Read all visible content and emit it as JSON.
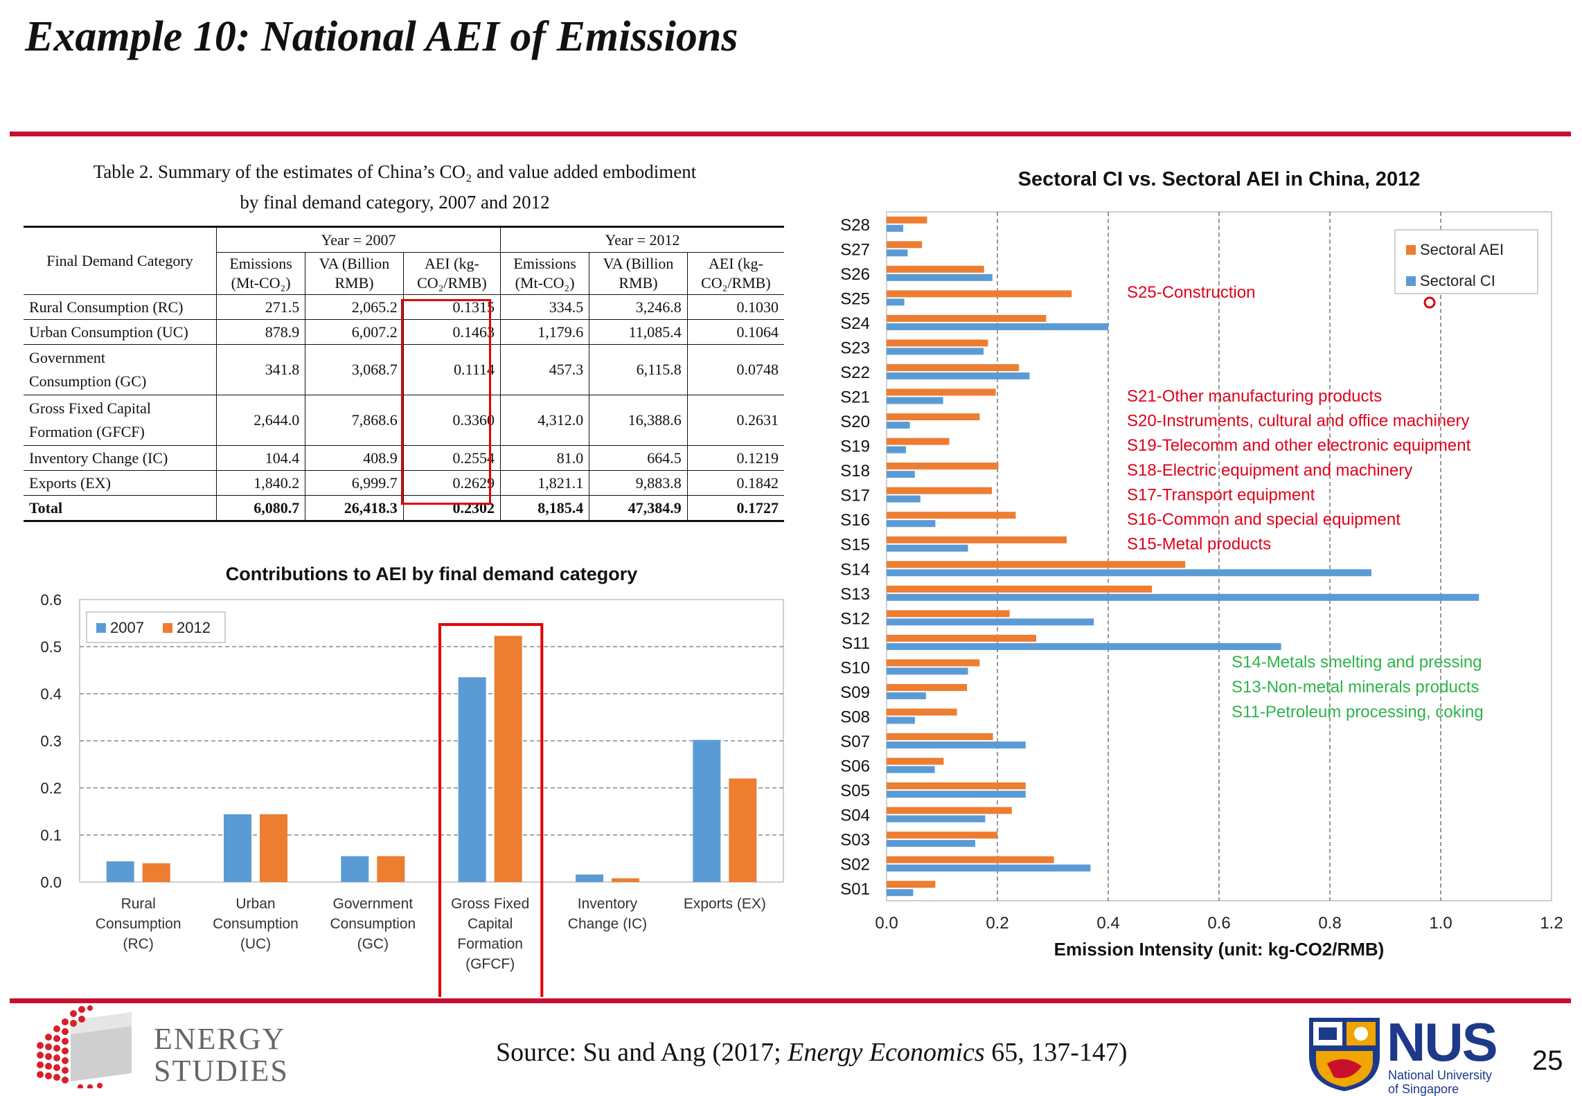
{
  "slide": {
    "title": "Example 10: National AEI of Emissions",
    "page_number": "25",
    "source_prefix": "Source: Su and Ang (2017; ",
    "source_journal": "Energy Economics",
    "source_suffix": " 65, 137-147)",
    "colors": {
      "rule": "#c8102e",
      "highlight_box": "#e00000",
      "series_blue": "#5b9bd5",
      "series_orange": "#ed7d31",
      "annot_red": "#e0001b",
      "annot_green": "#2db34a"
    }
  },
  "logos": {
    "energy_line1": "ENERGY",
    "energy_line2": "STUDIES",
    "nus_word": "NUS",
    "nus_sub1": "National University",
    "nus_sub2": "of Singapore"
  },
  "table": {
    "caption_line1": "Table 2. Summary of the estimates of China’s CO₂ and value added embodiment",
    "caption_line2": "by final demand category, 2007 and 2012",
    "col_category": "Final Demand Category",
    "year_2007": "Year = 2007",
    "year_2012": "Year = 2012",
    "h_emis_1": "Emissions",
    "h_emis_2": "(Mt-CO₂)",
    "h_va_1": "VA (Billion",
    "h_va_2": "RMB)",
    "h_aei_1": "AEI (kg-",
    "h_aei_2": "CO₂/RMB)",
    "rows": [
      {
        "name": "Rural Consumption (RC)",
        "e07": "271.5",
        "va07": "2,065.2",
        "aei07": "0.1315",
        "e12": "334.5",
        "va12": "3,246.8",
        "aei12": "0.1030"
      },
      {
        "name": "Urban Consumption (UC)",
        "e07": "878.9",
        "va07": "6,007.2",
        "aei07": "0.1463",
        "e12": "1,179.6",
        "va12": "11,085.4",
        "aei12": "0.1064"
      },
      {
        "name_1": "Government",
        "name_2": "Consumption (GC)",
        "e07": "341.8",
        "va07": "3,068.7",
        "aei07": "0.1114",
        "e12": "457.3",
        "va12": "6,115.8",
        "aei12": "0.0748"
      },
      {
        "name_1": "Gross Fixed Capital",
        "name_2": "Formation (GFCF)",
        "e07": "2,644.0",
        "va07": "7,868.6",
        "aei07": "0.3360",
        "e12": "4,312.0",
        "va12": "16,388.6",
        "aei12": "0.2631"
      },
      {
        "name": "Inventory Change (IC)",
        "e07": "104.4",
        "va07": "408.9",
        "aei07": "0.2554",
        "e12": "81.0",
        "va12": "664.5",
        "aei12": "0.1219"
      },
      {
        "name": "Exports (EX)",
        "e07": "1,840.2",
        "va07": "6,999.7",
        "aei07": "0.2629",
        "e12": "1,821.1",
        "va12": "9,883.8",
        "aei12": "0.1842"
      },
      {
        "name": "Total",
        "e07": "6,080.7",
        "va07": "26,418.3",
        "aei07": "0.2302",
        "e12": "8,185.4",
        "va12": "47,384.9",
        "aei12": "0.1727"
      }
    ]
  },
  "chart_data": [
    {
      "type": "bar",
      "title": "Contributions to AEI by final demand category",
      "categories": [
        [
          "Rural",
          "Consumption",
          "(RC)"
        ],
        [
          "Urban",
          "Consumption",
          "(UC)"
        ],
        [
          "Government",
          "Consumption",
          "(GC)"
        ],
        [
          "Gross Fixed",
          "Capital",
          "Formation",
          "(GFCF)"
        ],
        [
          "Inventory",
          "Change (IC)"
        ],
        [
          "Exports (EX)"
        ]
      ],
      "series": [
        {
          "name": "2007",
          "color": "#5b9bd5",
          "values": [
            0.044,
            0.144,
            0.055,
            0.435,
            0.016,
            0.302
          ]
        },
        {
          "name": "2012",
          "color": "#ed7d31",
          "values": [
            0.04,
            0.144,
            0.055,
            0.523,
            0.008,
            0.22
          ]
        }
      ],
      "ylim": [
        0,
        0.6
      ],
      "yticks": [
        "0.0",
        "0.1",
        "0.2",
        "0.3",
        "0.4",
        "0.5",
        "0.6"
      ],
      "legend_position": "top-left",
      "grid": "dashed horizontal",
      "highlighted_category": "Gross Fixed Capital Formation (GFCF)"
    },
    {
      "type": "bar",
      "orientation": "horizontal",
      "title": "Sectoral CI vs. Sectoral AEI in China, 2012",
      "xlabel": "Emission Intensity (unit: kg-CO2/RMB)",
      "xlim": [
        0,
        1.2
      ],
      "xticks": [
        "0.0",
        "0.2",
        "0.4",
        "0.6",
        "0.8",
        "1.0",
        "1.2"
      ],
      "categories": [
        "S01",
        "S02",
        "S03",
        "S04",
        "S05",
        "S06",
        "S07",
        "S08",
        "S09",
        "S10",
        "S11",
        "S12",
        "S13",
        "S14",
        "S15",
        "S16",
        "S17",
        "S18",
        "S19",
        "S20",
        "S21",
        "S22",
        "S23",
        "S24",
        "S25",
        "S26",
        "S27",
        "S28"
      ],
      "series": [
        {
          "name": "Sectoral AEI",
          "color": "#ed7d31",
          "values": [
            0.088,
            0.302,
            0.2,
            0.226,
            0.251,
            0.103,
            0.192,
            0.127,
            0.145,
            0.168,
            0.27,
            0.222,
            0.479,
            0.539,
            0.325,
            0.233,
            0.19,
            0.202,
            0.113,
            0.168,
            0.197,
            0.239,
            0.183,
            0.288,
            0.334,
            0.176,
            0.064,
            0.073
          ]
        },
        {
          "name": "Sectoral CI",
          "color": "#5b9bd5",
          "values": [
            0.048,
            0.368,
            0.16,
            0.178,
            0.251,
            0.087,
            0.251,
            0.051,
            0.071,
            0.147,
            0.712,
            0.374,
            1.069,
            0.875,
            0.147,
            0.088,
            0.061,
            0.051,
            0.035,
            0.042,
            0.102,
            0.258,
            0.175,
            0.4,
            0.032,
            0.191,
            0.038,
            0.03
          ]
        }
      ],
      "legend_position": "top-right",
      "grid": "dashed vertical",
      "annotations_red": [
        "S25-Construction",
        "S21-Other manufacturing products",
        "S20-Instruments, cultural and office machinery",
        "S19-Telecomm and other electronic equipment",
        "S18-Electric equipment and machinery",
        "S17-Transport equipment",
        "S16-Common and special equipment",
        "S15-Metal products"
      ],
      "annotations_green": [
        "S14-Metals smelting and pressing",
        "S13-Non-metal minerals products",
        "S11-Petroleum processing, coking"
      ]
    }
  ]
}
